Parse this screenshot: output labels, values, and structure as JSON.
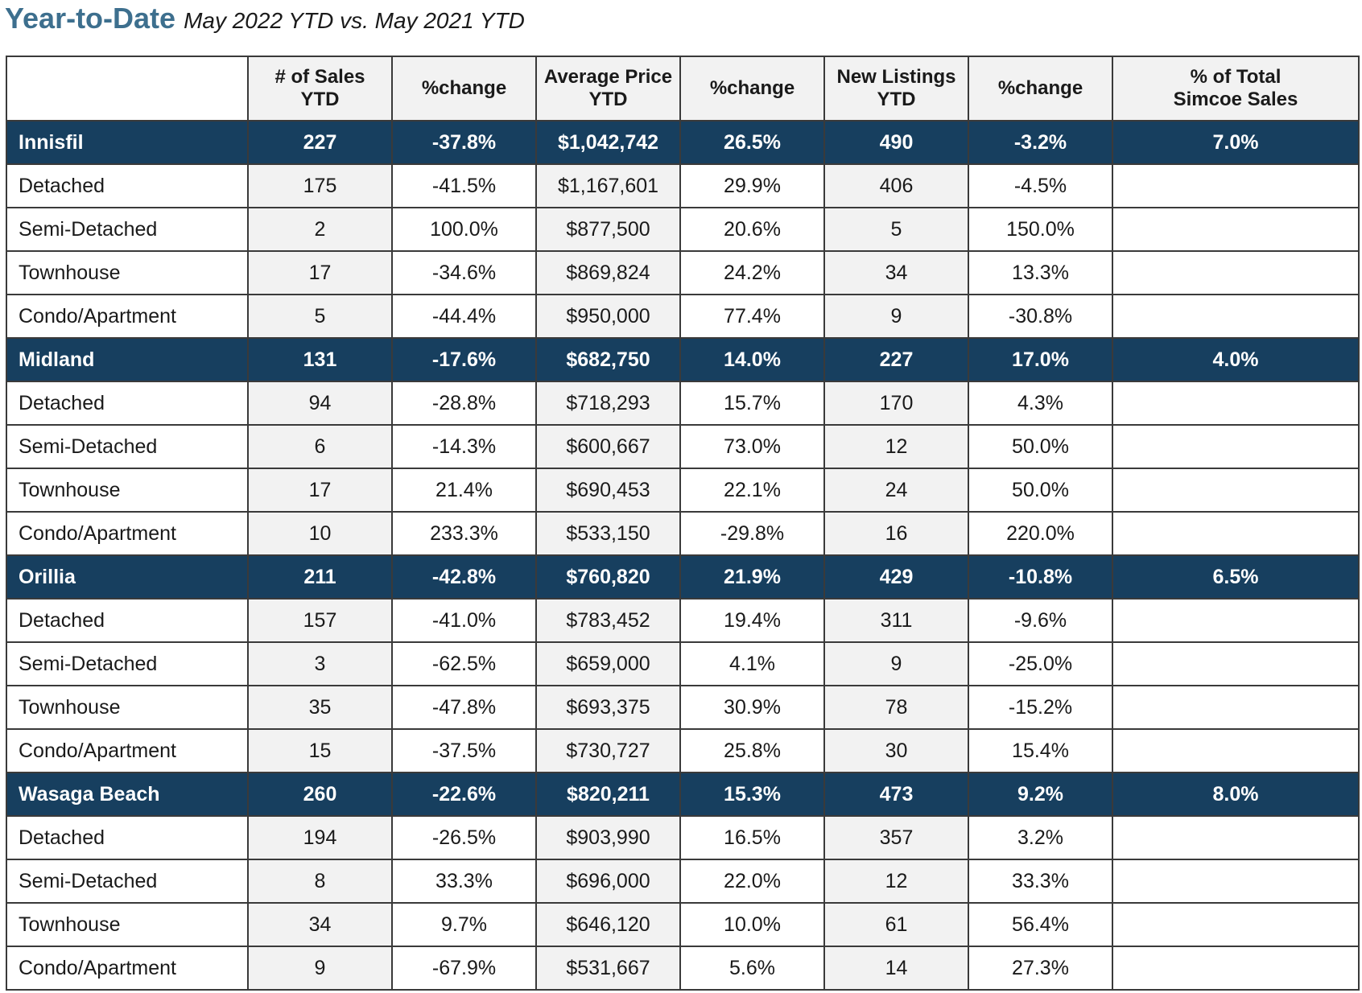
{
  "title": {
    "main": "Year-to-Date",
    "sub": "May 2022 YTD vs. May 2021 YTD"
  },
  "colors": {
    "title": "#3d6f8e",
    "group_row": "#173f5f",
    "shaded_cell": "#f2f2f2"
  },
  "table": {
    "columns": [
      {
        "l1": "",
        "l2": ""
      },
      {
        "l1": "# of Sales",
        "l2": "YTD"
      },
      {
        "l1": "%change",
        "l2": ""
      },
      {
        "l1": "Average Price",
        "l2": "YTD"
      },
      {
        "l1": "%change",
        "l2": ""
      },
      {
        "l1": "New Listings",
        "l2": "YTD"
      },
      {
        "l1": "%change",
        "l2": ""
      },
      {
        "l1": "% of Total",
        "l2": "Simcoe Sales"
      }
    ],
    "groups": [
      {
        "name": "Innisfil",
        "sales": "227",
        "sales_chg": "-37.8%",
        "price": "$1,042,742",
        "price_chg": "26.5%",
        "listings": "490",
        "listings_chg": "-3.2%",
        "share": "7.0%",
        "rows": [
          {
            "type": "Detached",
            "sales": "175",
            "sales_chg": "-41.5%",
            "price": "$1,167,601",
            "price_chg": "29.9%",
            "listings": "406",
            "listings_chg": "-4.5%"
          },
          {
            "type": "Semi-Detached",
            "sales": "2",
            "sales_chg": "100.0%",
            "price": "$877,500",
            "price_chg": "20.6%",
            "listings": "5",
            "listings_chg": "150.0%"
          },
          {
            "type": "Townhouse",
            "sales": "17",
            "sales_chg": "-34.6%",
            "price": "$869,824",
            "price_chg": "24.2%",
            "listings": "34",
            "listings_chg": "13.3%"
          },
          {
            "type": "Condo/Apartment",
            "sales": "5",
            "sales_chg": "-44.4%",
            "price": "$950,000",
            "price_chg": "77.4%",
            "listings": "9",
            "listings_chg": "-30.8%"
          }
        ]
      },
      {
        "name": "Midland",
        "sales": "131",
        "sales_chg": "-17.6%",
        "price": "$682,750",
        "price_chg": "14.0%",
        "listings": "227",
        "listings_chg": "17.0%",
        "share": "4.0%",
        "rows": [
          {
            "type": "Detached",
            "sales": "94",
            "sales_chg": "-28.8%",
            "price": "$718,293",
            "price_chg": "15.7%",
            "listings": "170",
            "listings_chg": "4.3%"
          },
          {
            "type": "Semi-Detached",
            "sales": "6",
            "sales_chg": "-14.3%",
            "price": "$600,667",
            "price_chg": "73.0%",
            "listings": "12",
            "listings_chg": "50.0%"
          },
          {
            "type": "Townhouse",
            "sales": "17",
            "sales_chg": "21.4%",
            "price": "$690,453",
            "price_chg": "22.1%",
            "listings": "24",
            "listings_chg": "50.0%"
          },
          {
            "type": "Condo/Apartment",
            "sales": "10",
            "sales_chg": "233.3%",
            "price": "$533,150",
            "price_chg": "-29.8%",
            "listings": "16",
            "listings_chg": "220.0%"
          }
        ]
      },
      {
        "name": "Orillia",
        "sales": "211",
        "sales_chg": "-42.8%",
        "price": "$760,820",
        "price_chg": "21.9%",
        "listings": "429",
        "listings_chg": "-10.8%",
        "share": "6.5%",
        "rows": [
          {
            "type": "Detached",
            "sales": "157",
            "sales_chg": "-41.0%",
            "price": "$783,452",
            "price_chg": "19.4%",
            "listings": "311",
            "listings_chg": "-9.6%"
          },
          {
            "type": "Semi-Detached",
            "sales": "3",
            "sales_chg": "-62.5%",
            "price": "$659,000",
            "price_chg": "4.1%",
            "listings": "9",
            "listings_chg": "-25.0%"
          },
          {
            "type": "Townhouse",
            "sales": "35",
            "sales_chg": "-47.8%",
            "price": "$693,375",
            "price_chg": "30.9%",
            "listings": "78",
            "listings_chg": "-15.2%"
          },
          {
            "type": "Condo/Apartment",
            "sales": "15",
            "sales_chg": "-37.5%",
            "price": "$730,727",
            "price_chg": "25.8%",
            "listings": "30",
            "listings_chg": "15.4%"
          }
        ]
      },
      {
        "name": "Wasaga Beach",
        "sales": "260",
        "sales_chg": "-22.6%",
        "price": "$820,211",
        "price_chg": "15.3%",
        "listings": "473",
        "listings_chg": "9.2%",
        "share": "8.0%",
        "rows": [
          {
            "type": "Detached",
            "sales": "194",
            "sales_chg": "-26.5%",
            "price": "$903,990",
            "price_chg": "16.5%",
            "listings": "357",
            "listings_chg": "3.2%"
          },
          {
            "type": "Semi-Detached",
            "sales": "8",
            "sales_chg": "33.3%",
            "price": "$696,000",
            "price_chg": "22.0%",
            "listings": "12",
            "listings_chg": "33.3%"
          },
          {
            "type": "Townhouse",
            "sales": "34",
            "sales_chg": "9.7%",
            "price": "$646,120",
            "price_chg": "10.0%",
            "listings": "61",
            "listings_chg": "56.4%"
          },
          {
            "type": "Condo/Apartment",
            "sales": "9",
            "sales_chg": "-67.9%",
            "price": "$531,667",
            "price_chg": "5.6%",
            "listings": "14",
            "listings_chg": "27.3%"
          }
        ]
      }
    ]
  }
}
